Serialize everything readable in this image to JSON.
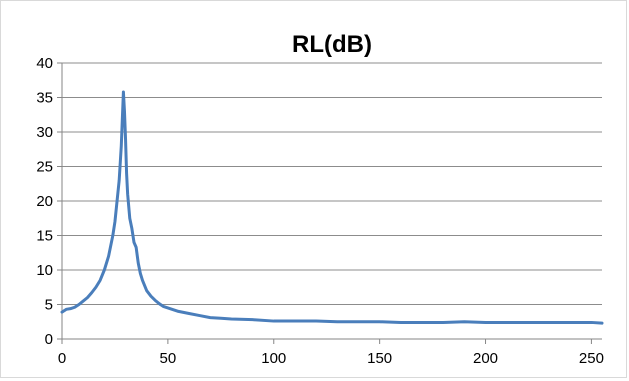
{
  "chart_data": {
    "type": "line",
    "title": "RL(dB)",
    "xlabel": "",
    "ylabel": "",
    "xlim": [
      0,
      255
    ],
    "ylim": [
      0,
      40
    ],
    "x_ticks": [
      0,
      50,
      100,
      150,
      200,
      250
    ],
    "y_ticks": [
      0,
      5,
      10,
      15,
      20,
      25,
      30,
      35,
      40
    ],
    "grid": {
      "horizontal": true,
      "vertical": false
    },
    "legend": "none",
    "series": [
      {
        "color": "#4a7ebb",
        "x": [
          0,
          2,
          4,
          6,
          8,
          10,
          12,
          14,
          16,
          18,
          20,
          22,
          24,
          25,
          26,
          27,
          28,
          29,
          29.5,
          30,
          30.5,
          31,
          32,
          33,
          34,
          35,
          36,
          37,
          38,
          40,
          42,
          44,
          46,
          48,
          50,
          55,
          60,
          65,
          70,
          75,
          80,
          90,
          100,
          110,
          120,
          130,
          140,
          150,
          160,
          170,
          180,
          190,
          200,
          210,
          220,
          230,
          240,
          250,
          255
        ],
        "y": [
          3.9,
          4.3,
          4.4,
          4.6,
          5.0,
          5.5,
          6.0,
          6.7,
          7.5,
          8.5,
          10.0,
          12.0,
          15.0,
          17.0,
          20.0,
          23.0,
          28.0,
          35.8,
          33.0,
          29.0,
          24.0,
          21.0,
          17.5,
          16.0,
          14.0,
          13.3,
          11.0,
          9.5,
          8.5,
          7.0,
          6.2,
          5.6,
          5.1,
          4.7,
          4.5,
          4.0,
          3.7,
          3.4,
          3.1,
          3.0,
          2.9,
          2.8,
          2.6,
          2.6,
          2.6,
          2.5,
          2.5,
          2.5,
          2.4,
          2.4,
          2.4,
          2.5,
          2.4,
          2.4,
          2.4,
          2.4,
          2.4,
          2.4,
          2.3
        ]
      }
    ]
  }
}
